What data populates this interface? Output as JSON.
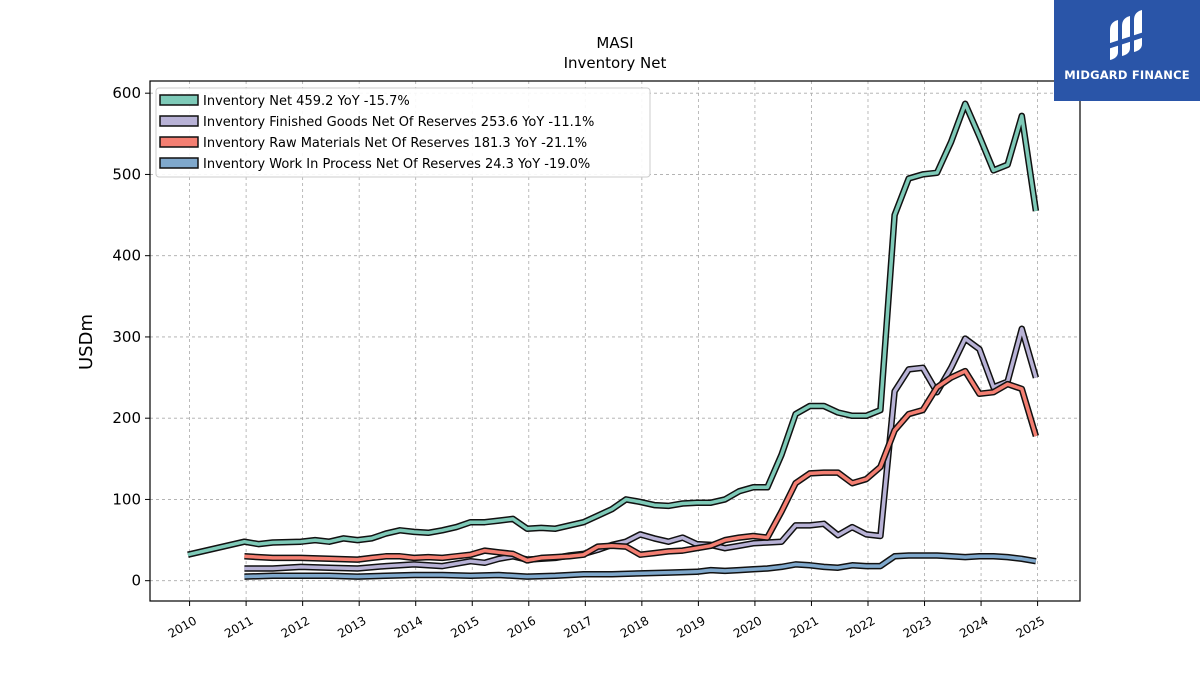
{
  "branding": {
    "name": "MIDGARD FINANCE",
    "icon": "midgard-logo-icon",
    "bg_color": "#2a55a8"
  },
  "chart_data": {
    "type": "line",
    "title": "MASI",
    "subtitle": "Inventory Net",
    "ylabel": "USDm",
    "xlabel": "",
    "xlim": [
      2009.3,
      2025.75
    ],
    "ylim": [
      -25,
      615
    ],
    "x_ticks": [
      "2010",
      "2011",
      "2012",
      "2013",
      "2014",
      "2015",
      "2016",
      "2017",
      "2018",
      "2019",
      "2020",
      "2021",
      "2022",
      "2023",
      "2024",
      "2025"
    ],
    "y_ticks": [
      0,
      100,
      200,
      300,
      400,
      500,
      600
    ],
    "grid": true,
    "legend_position": "top-left",
    "series": [
      {
        "name": "Inventory Net  459.2 YoY -15.7%",
        "color": "#7ecab8",
        "points": [
          [
            2009.97,
            32
          ],
          [
            2010.97,
            48
          ],
          [
            2011.22,
            45
          ],
          [
            2011.47,
            47
          ],
          [
            2011.97,
            48
          ],
          [
            2012.22,
            50
          ],
          [
            2012.47,
            48
          ],
          [
            2012.72,
            52
          ],
          [
            2012.97,
            50
          ],
          [
            2013.22,
            52
          ],
          [
            2013.47,
            58
          ],
          [
            2013.72,
            62
          ],
          [
            2013.97,
            60
          ],
          [
            2014.22,
            59
          ],
          [
            2014.47,
            62
          ],
          [
            2014.72,
            66
          ],
          [
            2014.97,
            72
          ],
          [
            2015.22,
            72
          ],
          [
            2015.47,
            74
          ],
          [
            2015.72,
            76
          ],
          [
            2015.97,
            64
          ],
          [
            2016.22,
            65
          ],
          [
            2016.47,
            64
          ],
          [
            2016.72,
            68
          ],
          [
            2016.97,
            72
          ],
          [
            2017.22,
            80
          ],
          [
            2017.47,
            88
          ],
          [
            2017.72,
            100
          ],
          [
            2017.97,
            97
          ],
          [
            2018.22,
            93
          ],
          [
            2018.47,
            92
          ],
          [
            2018.72,
            95
          ],
          [
            2018.97,
            96
          ],
          [
            2019.22,
            96
          ],
          [
            2019.47,
            100
          ],
          [
            2019.72,
            110
          ],
          [
            2019.97,
            115
          ],
          [
            2020.22,
            115
          ],
          [
            2020.47,
            155
          ],
          [
            2020.72,
            205
          ],
          [
            2020.97,
            215
          ],
          [
            2021.22,
            215
          ],
          [
            2021.47,
            207
          ],
          [
            2021.72,
            203
          ],
          [
            2021.97,
            203
          ],
          [
            2022.22,
            210
          ],
          [
            2022.47,
            450
          ],
          [
            2022.72,
            495
          ],
          [
            2022.97,
            500
          ],
          [
            2023.22,
            502
          ],
          [
            2023.47,
            540
          ],
          [
            2023.72,
            587
          ],
          [
            2023.97,
            547
          ],
          [
            2024.22,
            505
          ],
          [
            2024.47,
            512
          ],
          [
            2024.72,
            572
          ],
          [
            2024.97,
            455
          ]
        ]
      },
      {
        "name": "Inventory Finished Goods Net Of Reserves  253.6 YoY -11.1%",
        "color": "#b8b2d6",
        "points": [
          [
            2010.97,
            15
          ],
          [
            2011.47,
            15
          ],
          [
            2011.97,
            17
          ],
          [
            2012.47,
            16
          ],
          [
            2012.97,
            15
          ],
          [
            2013.47,
            18
          ],
          [
            2013.97,
            20
          ],
          [
            2014.47,
            18
          ],
          [
            2014.97,
            24
          ],
          [
            2015.22,
            22
          ],
          [
            2015.47,
            27
          ],
          [
            2015.72,
            30
          ],
          [
            2015.97,
            26
          ],
          [
            2016.22,
            27
          ],
          [
            2016.47,
            28
          ],
          [
            2016.72,
            31
          ],
          [
            2016.97,
            33
          ],
          [
            2017.22,
            38
          ],
          [
            2017.47,
            44
          ],
          [
            2017.72,
            48
          ],
          [
            2017.97,
            57
          ],
          [
            2018.22,
            52
          ],
          [
            2018.47,
            48
          ],
          [
            2018.72,
            53
          ],
          [
            2018.97,
            45
          ],
          [
            2019.22,
            44
          ],
          [
            2019.47,
            40
          ],
          [
            2019.72,
            43
          ],
          [
            2019.97,
            46
          ],
          [
            2020.22,
            47
          ],
          [
            2020.47,
            48
          ],
          [
            2020.72,
            68
          ],
          [
            2020.97,
            68
          ],
          [
            2021.22,
            70
          ],
          [
            2021.47,
            56
          ],
          [
            2021.72,
            66
          ],
          [
            2021.97,
            57
          ],
          [
            2022.22,
            55
          ],
          [
            2022.47,
            233
          ],
          [
            2022.72,
            260
          ],
          [
            2022.97,
            262
          ],
          [
            2023.22,
            232
          ],
          [
            2023.47,
            262
          ],
          [
            2023.72,
            298
          ],
          [
            2023.97,
            285
          ],
          [
            2024.22,
            238
          ],
          [
            2024.47,
            245
          ],
          [
            2024.72,
            310
          ],
          [
            2024.97,
            250
          ]
        ]
      },
      {
        "name": "Inventory Raw Materials Net Of Reserves  181.3 YoY -21.1%",
        "color": "#f47f72",
        "points": [
          [
            2010.97,
            30
          ],
          [
            2011.47,
            28
          ],
          [
            2011.97,
            28
          ],
          [
            2012.47,
            27
          ],
          [
            2012.97,
            26
          ],
          [
            2013.22,
            28
          ],
          [
            2013.47,
            30
          ],
          [
            2013.72,
            30
          ],
          [
            2013.97,
            28
          ],
          [
            2014.22,
            29
          ],
          [
            2014.47,
            28
          ],
          [
            2014.72,
            30
          ],
          [
            2014.97,
            32
          ],
          [
            2015.22,
            37
          ],
          [
            2015.47,
            35
          ],
          [
            2015.72,
            33
          ],
          [
            2015.97,
            25
          ],
          [
            2016.22,
            28
          ],
          [
            2016.47,
            29
          ],
          [
            2016.72,
            30
          ],
          [
            2016.97,
            32
          ],
          [
            2017.22,
            42
          ],
          [
            2017.47,
            43
          ],
          [
            2017.72,
            42
          ],
          [
            2017.97,
            32
          ],
          [
            2018.22,
            34
          ],
          [
            2018.47,
            36
          ],
          [
            2018.72,
            37
          ],
          [
            2018.97,
            40
          ],
          [
            2019.22,
            43
          ],
          [
            2019.47,
            50
          ],
          [
            2019.72,
            53
          ],
          [
            2019.97,
            55
          ],
          [
            2020.22,
            53
          ],
          [
            2020.47,
            85
          ],
          [
            2020.72,
            120
          ],
          [
            2020.97,
            132
          ],
          [
            2021.22,
            133
          ],
          [
            2021.47,
            133
          ],
          [
            2021.72,
            120
          ],
          [
            2021.97,
            125
          ],
          [
            2022.22,
            140
          ],
          [
            2022.47,
            185
          ],
          [
            2022.72,
            205
          ],
          [
            2022.97,
            210
          ],
          [
            2023.22,
            238
          ],
          [
            2023.47,
            250
          ],
          [
            2023.72,
            258
          ],
          [
            2023.97,
            230
          ],
          [
            2024.22,
            232
          ],
          [
            2024.47,
            242
          ],
          [
            2024.72,
            236
          ],
          [
            2024.97,
            178
          ]
        ]
      },
      {
        "name": "Inventory Work In Process Net Of Reserves  24.3 YoY -19.0%",
        "color": "#7fa8cc",
        "points": [
          [
            2010.97,
            5
          ],
          [
            2011.47,
            6
          ],
          [
            2011.97,
            6
          ],
          [
            2012.47,
            6
          ],
          [
            2012.97,
            5
          ],
          [
            2013.47,
            6
          ],
          [
            2013.97,
            7
          ],
          [
            2014.47,
            7
          ],
          [
            2014.97,
            6
          ],
          [
            2015.47,
            7
          ],
          [
            2015.97,
            5
          ],
          [
            2016.47,
            6
          ],
          [
            2016.97,
            8
          ],
          [
            2017.47,
            8
          ],
          [
            2017.97,
            9
          ],
          [
            2018.47,
            10
          ],
          [
            2018.97,
            11
          ],
          [
            2019.22,
            13
          ],
          [
            2019.47,
            12
          ],
          [
            2019.72,
            13
          ],
          [
            2019.97,
            14
          ],
          [
            2020.22,
            15
          ],
          [
            2020.47,
            17
          ],
          [
            2020.72,
            20
          ],
          [
            2020.97,
            19
          ],
          [
            2021.22,
            17
          ],
          [
            2021.47,
            16
          ],
          [
            2021.72,
            19
          ],
          [
            2021.97,
            18
          ],
          [
            2022.22,
            18
          ],
          [
            2022.47,
            30
          ],
          [
            2022.72,
            31
          ],
          [
            2022.97,
            31
          ],
          [
            2023.22,
            31
          ],
          [
            2023.47,
            30
          ],
          [
            2023.72,
            29
          ],
          [
            2023.97,
            30
          ],
          [
            2024.22,
            30
          ],
          [
            2024.47,
            29
          ],
          [
            2024.72,
            27
          ],
          [
            2024.97,
            24
          ]
        ]
      }
    ]
  }
}
